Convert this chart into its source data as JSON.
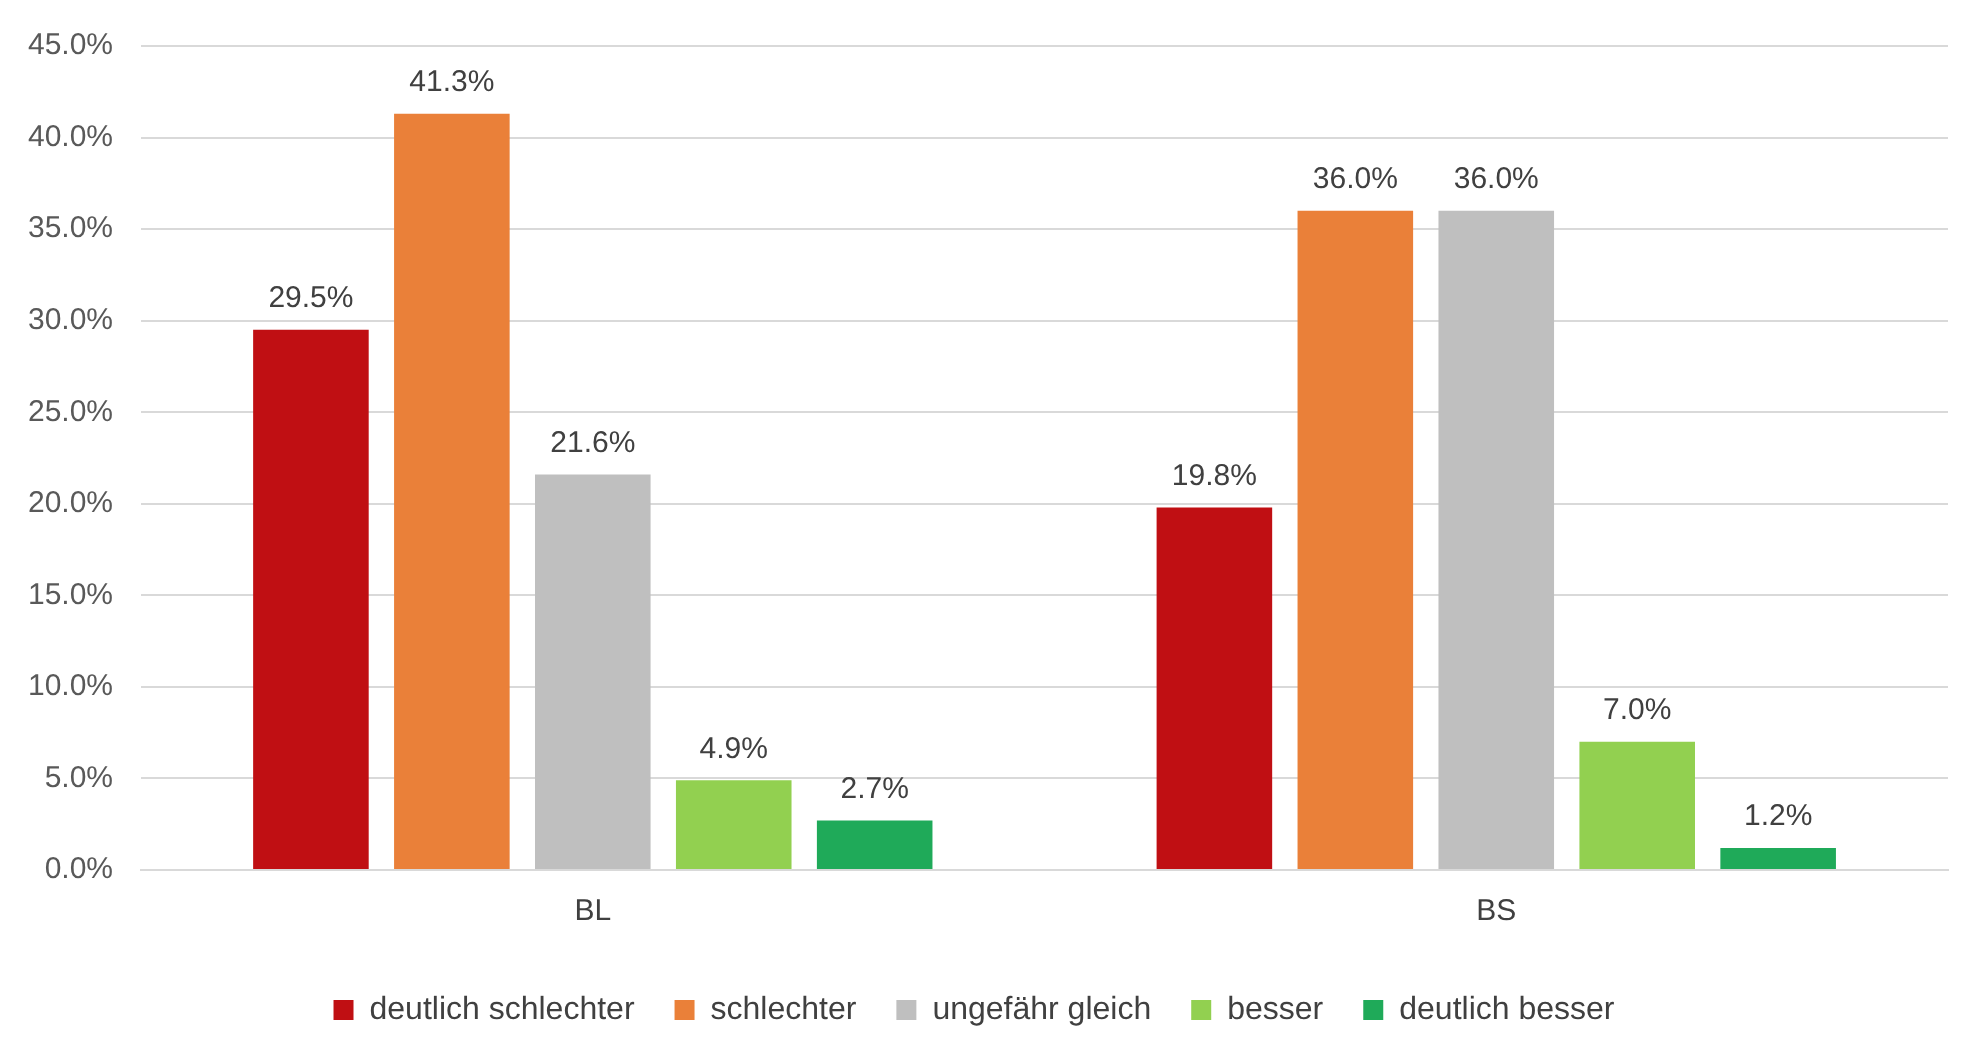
{
  "chart_data": {
    "type": "bar",
    "categories": [
      "BL",
      "BS"
    ],
    "series": [
      {
        "name": "deutlich schlechter",
        "color": "#c00f13",
        "values": [
          29.5,
          19.8
        ],
        "value_labels": [
          "29.5%",
          "19.8%"
        ]
      },
      {
        "name": "schlechter",
        "color": "#ea8039",
        "values": [
          41.3,
          36.0
        ],
        "value_labels": [
          "41.3%",
          "36.0%"
        ]
      },
      {
        "name": "ungefähr gleich",
        "color": "#bfbfbf",
        "values": [
          21.6,
          36.0
        ],
        "value_labels": [
          "21.6%",
          "36.0%"
        ]
      },
      {
        "name": "besser",
        "color": "#92d050",
        "values": [
          4.9,
          7.0
        ],
        "value_labels": [
          "4.9%",
          "7.0%"
        ]
      },
      {
        "name": "deutlich besser",
        "color": "#1faa59",
        "values": [
          2.7,
          1.2
        ],
        "value_labels": [
          "2.7%",
          "1.2%"
        ]
      }
    ],
    "ylim": [
      0,
      45
    ],
    "yticks": [
      {
        "value": 0,
        "label": "0.0%"
      },
      {
        "value": 5,
        "label": "5.0%"
      },
      {
        "value": 10,
        "label": "10.0%"
      },
      {
        "value": 15,
        "label": "15.0%"
      },
      {
        "value": 20,
        "label": "20.0%"
      },
      {
        "value": 25,
        "label": "25.0%"
      },
      {
        "value": 30,
        "label": "30.0%"
      },
      {
        "value": 35,
        "label": "35.0%"
      },
      {
        "value": 40,
        "label": "40.0%"
      },
      {
        "value": 45,
        "label": "45.0%"
      }
    ],
    "grid": "y",
    "legend": "bottom"
  }
}
